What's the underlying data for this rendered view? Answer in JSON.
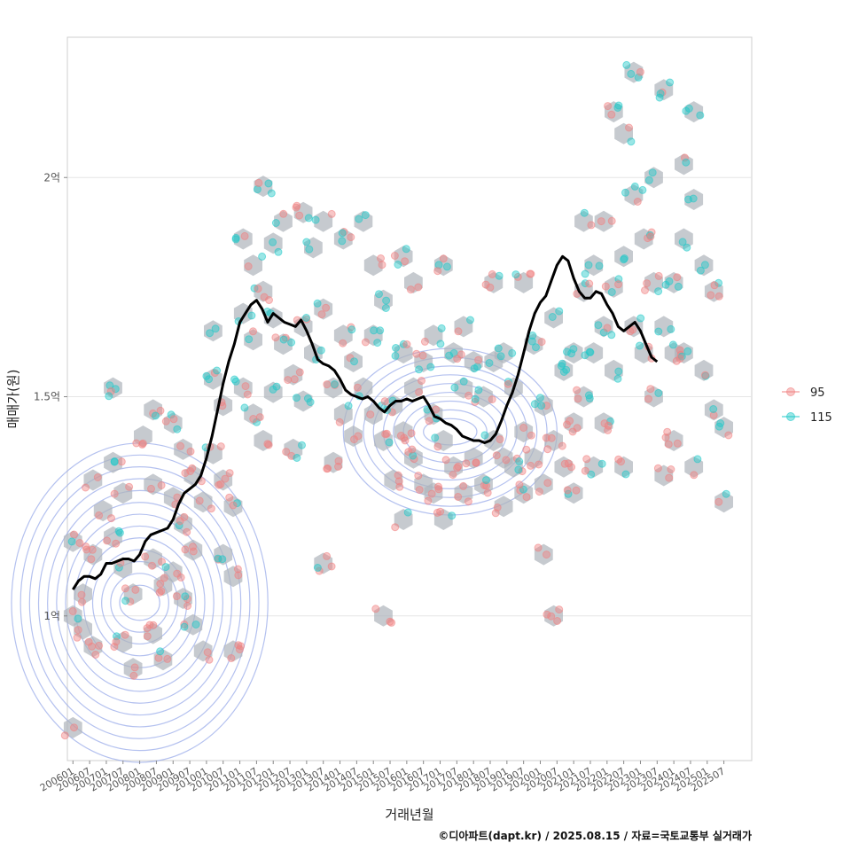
{
  "chart_data": {
    "type": "scatter",
    "xlabel": "거래년월",
    "ylabel": "매매가(원)",
    "caption": "©디아파트(dapt.kr) / 2025.08.15 / 자료=국토교통부 실거래가",
    "x_range": [
      "2005-11",
      "2026-05"
    ],
    "ylim": [
      0.67,
      2.32
    ],
    "y_unit": "억",
    "y_ticks": [
      {
        "value": 1.0,
        "label": "1억"
      },
      {
        "value": 1.5,
        "label": "1.5억"
      },
      {
        "value": 2.0,
        "label": "2억"
      }
    ],
    "x_ticks": [
      "200601",
      "200607",
      "200701",
      "200707",
      "200801",
      "200807",
      "200901",
      "200907",
      "201001",
      "201007",
      "201101",
      "201107",
      "201201",
      "201207",
      "201301",
      "201307",
      "201401",
      "201407",
      "201501",
      "201507",
      "201601",
      "201607",
      "201701",
      "201707",
      "201801",
      "201807",
      "201901",
      "201907",
      "202001",
      "202007",
      "202101",
      "202107",
      "202201",
      "202207",
      "202301",
      "202307",
      "202401",
      "202407",
      "202501",
      "202507"
    ],
    "grid": true,
    "legend_position": "right",
    "legend": [
      {
        "label": "95",
        "color": "#f08080"
      },
      {
        "label": "115",
        "color": "#20c8c8"
      }
    ],
    "colors": {
      "hex": "#aeb4ba",
      "contour": "#8ca0e6",
      "trend": "#000000"
    },
    "trend_line": [
      [
        "2006-01",
        1.06
      ],
      [
        "2006-03",
        1.08
      ],
      [
        "2006-05",
        1.09
      ],
      [
        "2006-07",
        1.09
      ],
      [
        "2006-09",
        1.085
      ],
      [
        "2006-11",
        1.095
      ],
      [
        "2007-01",
        1.12
      ],
      [
        "2007-03",
        1.12
      ],
      [
        "2007-05",
        1.125
      ],
      [
        "2007-07",
        1.13
      ],
      [
        "2007-09",
        1.13
      ],
      [
        "2007-11",
        1.125
      ],
      [
        "2008-01",
        1.14
      ],
      [
        "2008-03",
        1.17
      ],
      [
        "2008-05",
        1.185
      ],
      [
        "2008-07",
        1.19
      ],
      [
        "2008-09",
        1.195
      ],
      [
        "2008-11",
        1.2
      ],
      [
        "2009-01",
        1.22
      ],
      [
        "2009-03",
        1.255
      ],
      [
        "2009-05",
        1.28
      ],
      [
        "2009-07",
        1.29
      ],
      [
        "2009-09",
        1.3
      ],
      [
        "2009-11",
        1.32
      ],
      [
        "2010-01",
        1.36
      ],
      [
        "2010-03",
        1.41
      ],
      [
        "2010-05",
        1.47
      ],
      [
        "2010-07",
        1.53
      ],
      [
        "2010-09",
        1.58
      ],
      [
        "2010-11",
        1.62
      ],
      [
        "2011-01",
        1.67
      ],
      [
        "2011-03",
        1.69
      ],
      [
        "2011-05",
        1.71
      ],
      [
        "2011-07",
        1.72
      ],
      [
        "2011-09",
        1.7
      ],
      [
        "2011-11",
        1.67
      ],
      [
        "2012-01",
        1.69
      ],
      [
        "2012-03",
        1.68
      ],
      [
        "2012-05",
        1.67
      ],
      [
        "2012-07",
        1.665
      ],
      [
        "2012-09",
        1.66
      ],
      [
        "2012-11",
        1.675
      ],
      [
        "2013-01",
        1.65
      ],
      [
        "2013-03",
        1.62
      ],
      [
        "2013-05",
        1.585
      ],
      [
        "2013-07",
        1.575
      ],
      [
        "2013-09",
        1.57
      ],
      [
        "2013-11",
        1.56
      ],
      [
        "2014-01",
        1.54
      ],
      [
        "2014-03",
        1.515
      ],
      [
        "2014-05",
        1.505
      ],
      [
        "2014-07",
        1.5
      ],
      [
        "2014-09",
        1.495
      ],
      [
        "2014-11",
        1.5
      ],
      [
        "2015-01",
        1.49
      ],
      [
        "2015-03",
        1.475
      ],
      [
        "2015-05",
        1.465
      ],
      [
        "2015-07",
        1.48
      ],
      [
        "2015-09",
        1.49
      ],
      [
        "2015-11",
        1.49
      ],
      [
        "2016-01",
        1.495
      ],
      [
        "2016-03",
        1.49
      ],
      [
        "2016-05",
        1.495
      ],
      [
        "2016-07",
        1.5
      ],
      [
        "2016-09",
        1.48
      ],
      [
        "2016-11",
        1.455
      ],
      [
        "2017-01",
        1.45
      ],
      [
        "2017-03",
        1.44
      ],
      [
        "2017-05",
        1.435
      ],
      [
        "2017-07",
        1.425
      ],
      [
        "2017-09",
        1.41
      ],
      [
        "2017-11",
        1.405
      ],
      [
        "2018-01",
        1.4
      ],
      [
        "2018-03",
        1.4
      ],
      [
        "2018-05",
        1.395
      ],
      [
        "2018-07",
        1.4
      ],
      [
        "2018-09",
        1.415
      ],
      [
        "2018-11",
        1.445
      ],
      [
        "2019-01",
        1.48
      ],
      [
        "2019-03",
        1.51
      ],
      [
        "2019-05",
        1.55
      ],
      [
        "2019-07",
        1.6
      ],
      [
        "2019-09",
        1.65
      ],
      [
        "2019-11",
        1.69
      ],
      [
        "2020-01",
        1.715
      ],
      [
        "2020-03",
        1.73
      ],
      [
        "2020-05",
        1.765
      ],
      [
        "2020-07",
        1.8
      ],
      [
        "2020-09",
        1.82
      ],
      [
        "2020-11",
        1.81
      ],
      [
        "2021-01",
        1.77
      ],
      [
        "2021-03",
        1.74
      ],
      [
        "2021-05",
        1.725
      ],
      [
        "2021-07",
        1.725
      ],
      [
        "2021-09",
        1.74
      ],
      [
        "2021-11",
        1.735
      ],
      [
        "2022-01",
        1.71
      ],
      [
        "2022-03",
        1.69
      ],
      [
        "2022-05",
        1.66
      ],
      [
        "2022-07",
        1.65
      ],
      [
        "2022-09",
        1.66
      ],
      [
        "2022-11",
        1.67
      ],
      [
        "2023-01",
        1.65
      ],
      [
        "2023-03",
        1.62
      ],
      [
        "2023-05",
        1.59
      ],
      [
        "2023-07",
        1.58
      ]
    ],
    "hexbins": [
      [
        2006.0,
        1.17
      ],
      [
        2006.0,
        1.0
      ],
      [
        2006.0,
        0.745
      ],
      [
        2006.3,
        1.05
      ],
      [
        2006.3,
        0.97
      ],
      [
        2006.6,
        1.31
      ],
      [
        2006.6,
        1.14
      ],
      [
        2006.6,
        0.93
      ],
      [
        2006.9,
        1.24
      ],
      [
        2007.2,
        1.52
      ],
      [
        2007.2,
        1.35
      ],
      [
        2007.2,
        1.18
      ],
      [
        2007.5,
        1.28
      ],
      [
        2007.5,
        1.11
      ],
      [
        2007.5,
        0.94
      ],
      [
        2007.8,
        1.05
      ],
      [
        2007.8,
        0.88
      ],
      [
        2008.1,
        1.41
      ],
      [
        2008.4,
        1.47
      ],
      [
        2008.4,
        1.3
      ],
      [
        2008.4,
        1.13
      ],
      [
        2008.4,
        0.96
      ],
      [
        2008.7,
        1.07
      ],
      [
        2008.7,
        0.9
      ],
      [
        2009.0,
        1.44
      ],
      [
        2009.0,
        1.27
      ],
      [
        2009.0,
        1.1
      ],
      [
        2009.3,
        1.38
      ],
      [
        2009.3,
        1.21
      ],
      [
        2009.3,
        1.04
      ],
      [
        2009.6,
        1.32
      ],
      [
        2009.6,
        1.15
      ],
      [
        2009.6,
        0.98
      ],
      [
        2009.9,
        1.26
      ],
      [
        2009.9,
        0.92
      ],
      [
        2010.2,
        1.65
      ],
      [
        2010.2,
        1.54
      ],
      [
        2010.2,
        1.37
      ],
      [
        2010.5,
        1.48
      ],
      [
        2010.5,
        1.31
      ],
      [
        2010.5,
        1.14
      ],
      [
        2010.8,
        1.25
      ],
      [
        2010.8,
        1.09
      ],
      [
        2010.8,
        0.92
      ],
      [
        2011.1,
        1.86
      ],
      [
        2011.1,
        1.69
      ],
      [
        2011.1,
        1.52
      ],
      [
        2011.4,
        1.8
      ],
      [
        2011.4,
        1.63
      ],
      [
        2011.4,
        1.46
      ],
      [
        2011.7,
        1.98
      ],
      [
        2011.7,
        1.74
      ],
      [
        2011.7,
        1.4
      ],
      [
        2012.0,
        1.85
      ],
      [
        2012.0,
        1.68
      ],
      [
        2012.0,
        1.51
      ],
      [
        2012.3,
        1.9
      ],
      [
        2012.3,
        1.62
      ],
      [
        2012.6,
        1.55
      ],
      [
        2012.6,
        1.38
      ],
      [
        2012.9,
        1.92
      ],
      [
        2012.9,
        1.66
      ],
      [
        2012.9,
        1.49
      ],
      [
        2013.2,
        1.84
      ],
      [
        2013.2,
        1.6
      ],
      [
        2013.5,
        1.9
      ],
      [
        2013.5,
        1.7
      ],
      [
        2013.5,
        1.12
      ],
      [
        2013.8,
        1.52
      ],
      [
        2013.8,
        1.35
      ],
      [
        2014.1,
        1.86
      ],
      [
        2014.1,
        1.64
      ],
      [
        2014.1,
        1.46
      ],
      [
        2014.4,
        1.58
      ],
      [
        2014.4,
        1.41
      ],
      [
        2014.7,
        1.9
      ],
      [
        2014.7,
        1.52
      ],
      [
        2015.0,
        1.8
      ],
      [
        2015.0,
        1.64
      ],
      [
        2015.0,
        1.46
      ],
      [
        2015.3,
        1.72
      ],
      [
        2015.3,
        1.4
      ],
      [
        2015.3,
        1.0
      ],
      [
        2015.6,
        1.48
      ],
      [
        2015.6,
        1.31
      ],
      [
        2015.9,
        1.82
      ],
      [
        2015.9,
        1.6
      ],
      [
        2015.9,
        1.42
      ],
      [
        2015.9,
        1.22
      ],
      [
        2016.2,
        1.76
      ],
      [
        2016.2,
        1.52
      ],
      [
        2016.2,
        1.36
      ],
      [
        2016.5,
        1.58
      ],
      [
        2016.5,
        1.3
      ],
      [
        2016.8,
        1.64
      ],
      [
        2016.8,
        1.46
      ],
      [
        2016.8,
        1.28
      ],
      [
        2017.1,
        1.8
      ],
      [
        2017.1,
        1.4
      ],
      [
        2017.1,
        1.22
      ],
      [
        2017.4,
        1.6
      ],
      [
        2017.4,
        1.34
      ],
      [
        2017.7,
        1.66
      ],
      [
        2017.7,
        1.52
      ],
      [
        2017.7,
        1.28
      ],
      [
        2018.0,
        1.58
      ],
      [
        2018.0,
        1.36
      ],
      [
        2018.3,
        1.5
      ],
      [
        2018.3,
        1.3
      ],
      [
        2018.6,
        1.76
      ],
      [
        2018.6,
        1.58
      ],
      [
        2018.6,
        1.4
      ],
      [
        2018.9,
        1.6
      ],
      [
        2018.9,
        1.36
      ],
      [
        2018.9,
        1.25
      ],
      [
        2019.2,
        1.52
      ],
      [
        2019.2,
        1.34
      ],
      [
        2019.5,
        1.76
      ],
      [
        2019.5,
        1.42
      ],
      [
        2019.5,
        1.28
      ],
      [
        2019.8,
        1.62
      ],
      [
        2019.8,
        1.36
      ],
      [
        2020.1,
        1.48
      ],
      [
        2020.1,
        1.3
      ],
      [
        2020.1,
        1.14
      ],
      [
        2020.4,
        1.68
      ],
      [
        2020.4,
        1.4
      ],
      [
        2020.4,
        1.0
      ],
      [
        2020.7,
        1.56
      ],
      [
        2020.7,
        1.34
      ],
      [
        2021.0,
        1.6
      ],
      [
        2021.0,
        1.44
      ],
      [
        2021.0,
        1.28
      ],
      [
        2021.3,
        1.9
      ],
      [
        2021.3,
        1.74
      ],
      [
        2021.3,
        1.5
      ],
      [
        2021.6,
        1.8
      ],
      [
        2021.6,
        1.6
      ],
      [
        2021.6,
        1.34
      ],
      [
        2021.9,
        1.9
      ],
      [
        2021.9,
        1.66
      ],
      [
        2021.9,
        1.44
      ],
      [
        2022.2,
        2.15
      ],
      [
        2022.2,
        1.75
      ],
      [
        2022.2,
        1.56
      ],
      [
        2022.5,
        2.1
      ],
      [
        2022.5,
        1.82
      ],
      [
        2022.5,
        1.34
      ],
      [
        2022.8,
        2.24
      ],
      [
        2022.8,
        1.96
      ],
      [
        2022.8,
        1.66
      ],
      [
        2023.1,
        1.86
      ],
      [
        2023.1,
        1.6
      ],
      [
        2023.4,
        2.0
      ],
      [
        2023.4,
        1.76
      ],
      [
        2023.4,
        1.5
      ],
      [
        2023.7,
        2.2
      ],
      [
        2023.7,
        1.66
      ],
      [
        2023.7,
        1.32
      ],
      [
        2024.0,
        1.76
      ],
      [
        2024.0,
        1.6
      ],
      [
        2024.0,
        1.4
      ],
      [
        2024.3,
        2.03
      ],
      [
        2024.3,
        1.86
      ],
      [
        2024.3,
        1.6
      ],
      [
        2024.6,
        2.15
      ],
      [
        2024.6,
        1.95
      ],
      [
        2024.6,
        1.34
      ],
      [
        2024.9,
        1.8
      ],
      [
        2024.9,
        1.56
      ],
      [
        2025.2,
        1.74
      ],
      [
        2025.2,
        1.47
      ],
      [
        2025.5,
        1.43
      ],
      [
        2025.5,
        1.26
      ]
    ],
    "contour_centers": [
      {
        "x": 2008.0,
        "y": 1.03,
        "rx_years": 0.6,
        "ry": 0.04,
        "step_years": 0.27,
        "step_y": 0.027,
        "rings": 13
      },
      {
        "x": 2017.3,
        "y": 1.42,
        "rx_years": 0.8,
        "ry": 0.03,
        "step_years": 0.3,
        "step_y": 0.02,
        "rings": 9
      }
    ]
  }
}
